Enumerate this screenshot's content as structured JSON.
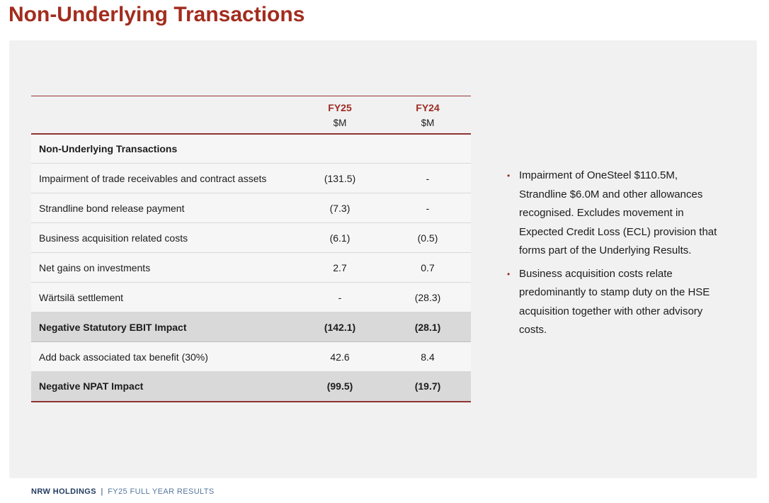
{
  "page": {
    "title": "Non-Underlying Transactions"
  },
  "table": {
    "columns": [
      {
        "label": "",
        "unit": ""
      },
      {
        "label": "FY25",
        "unit": "$M"
      },
      {
        "label": "FY24",
        "unit": "$M"
      }
    ],
    "section_header": "Non-Underlying Transactions",
    "rows": [
      {
        "label": "Impairment of trade receivables and contract assets",
        "fy25": "(131.5)",
        "fy24": "-",
        "style": "normal"
      },
      {
        "label": "Strandline bond release payment",
        "fy25": "(7.3)",
        "fy24": "-",
        "style": "normal"
      },
      {
        "label": "Business acquisition related costs",
        "fy25": "(6.1)",
        "fy24": "(0.5)",
        "style": "normal"
      },
      {
        "label": "Net gains on investments",
        "fy25": "2.7",
        "fy24": "0.7",
        "style": "normal"
      },
      {
        "label": "Wärtsilä settlement",
        "fy25": "-",
        "fy24": "(28.3)",
        "style": "normal"
      },
      {
        "label": "Negative Statutory EBIT Impact",
        "fy25": "(142.1)",
        "fy24": "(28.1)",
        "style": "total"
      },
      {
        "label": "Add back associated tax benefit (30%)",
        "fy25": "42.6",
        "fy24": "8.4",
        "style": "normal"
      },
      {
        "label": "Negative NPAT Impact",
        "fy25": "(99.5)",
        "fy24": "(19.7)",
        "style": "total"
      }
    ]
  },
  "notes": {
    "bullets": [
      "Impairment of OneSteel $110.5M, Strandline $6.0M and other allowances recognised. Excludes movement in Expected Credit Loss (ECL) provision that forms part of the Underlying Results.",
      "Business acquisition costs relate predominantly to stamp duty on the HSE acquisition together with other advisory costs."
    ],
    "bullet_glyph": "•"
  },
  "footer": {
    "company": "NRW HOLDINGS",
    "separator": "|",
    "subtitle": "FY25 FULL YEAR RESULTS"
  },
  "colors": {
    "accent_red": "#A22C1E",
    "table_line_red": "#8E3432",
    "header_year_red": "#9C2B21",
    "highlight_gray": "#D9D9D9",
    "panel_gray": "#F1F1F2",
    "footer_navy": "#1E3A5F",
    "footer_blue": "#54779D"
  }
}
